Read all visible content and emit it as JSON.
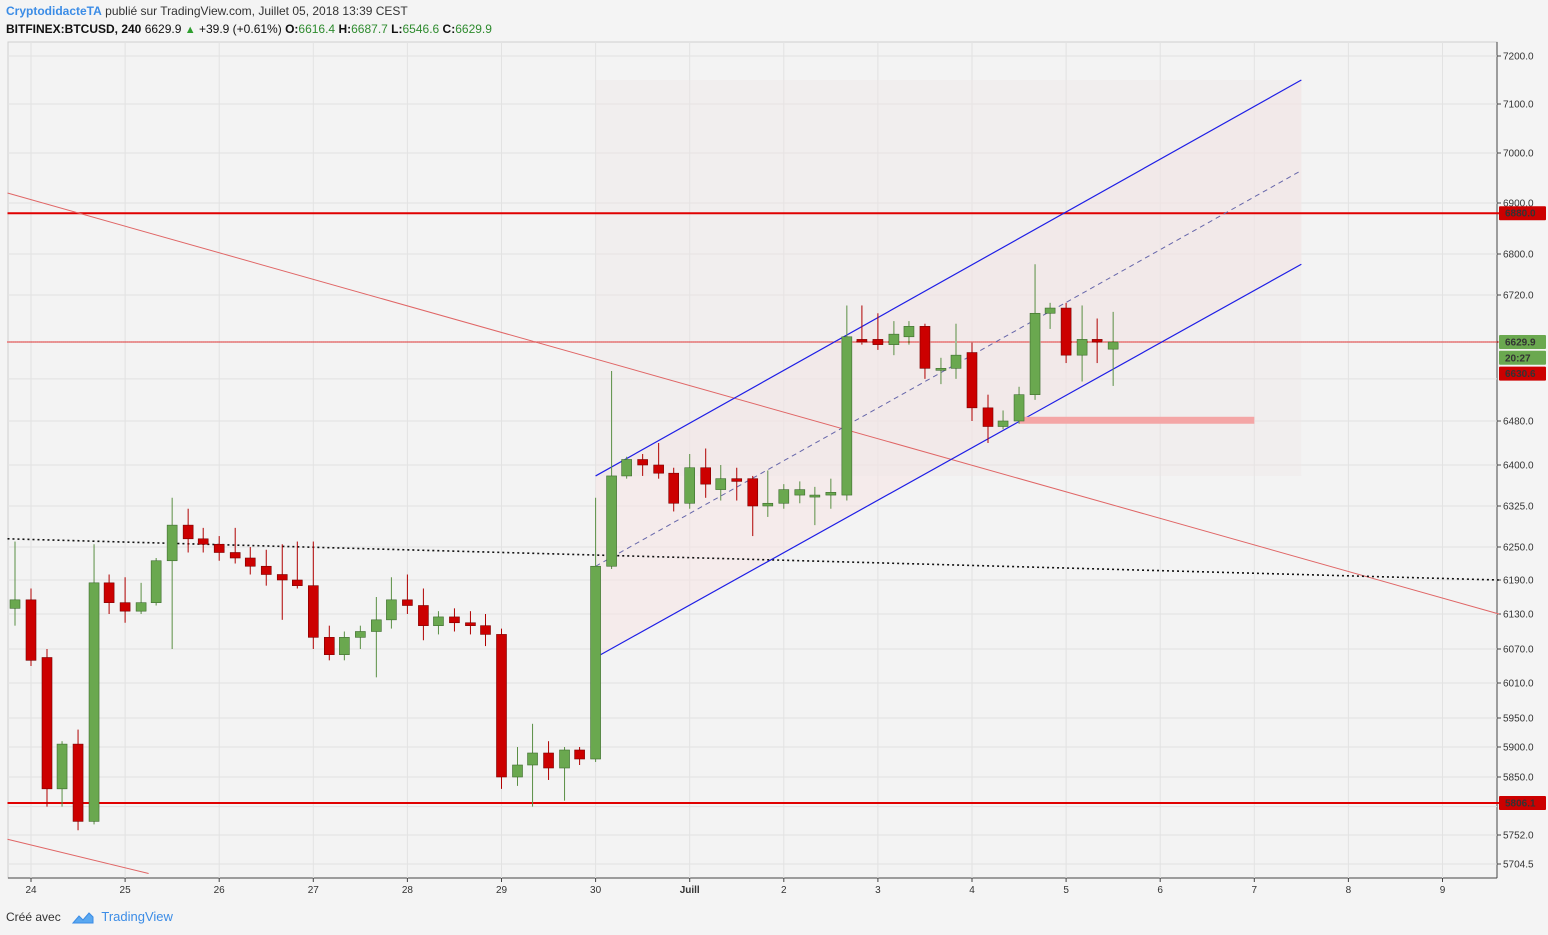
{
  "header": {
    "author": "CryptodidacteTA",
    "published": "publié sur TradingView.com, Juillet 05, 2018 13:39 CEST",
    "symbol": "BITFINEX:BTCUSD, 240",
    "last": "6629.9",
    "change": "+39.9 (+0.61%)",
    "o_label": "O:",
    "o": "6616.4",
    "h_label": "H:",
    "h": "6687.7",
    "l_label": "L:",
    "l": "6546.6",
    "c_label": "C:",
    "c": "6629.9"
  },
  "footer": {
    "created": "Créé avec",
    "brand": "TradingView"
  },
  "colors": {
    "up": "#6aa84f",
    "down": "#cc0000",
    "support": "#e00000",
    "channel": "#1e1ee6",
    "downtrend": "#e06666"
  },
  "chart_data": {
    "type": "candlestick",
    "xlabel": "",
    "ylabel": "",
    "y_ticks": [
      7200.0,
      7100.0,
      7000.0,
      6900.0,
      6800.0,
      6720.0,
      6480.0,
      6400.0,
      6325.0,
      6250.0,
      6190.0,
      6130.0,
      6070.0,
      6010.0,
      5950.0,
      5900.0,
      5850.0,
      5752.0,
      5704.5
    ],
    "x_labels": [
      {
        "label": "24",
        "day": 0
      },
      {
        "label": "25",
        "day": 1
      },
      {
        "label": "26",
        "day": 2
      },
      {
        "label": "27",
        "day": 3
      },
      {
        "label": "28",
        "day": 4
      },
      {
        "label": "29",
        "day": 5
      },
      {
        "label": "30",
        "day": 6
      },
      {
        "label": "Juill",
        "day": 7
      },
      {
        "label": "2",
        "day": 8
      },
      {
        "label": "3",
        "day": 9
      },
      {
        "label": "4",
        "day": 10
      },
      {
        "label": "5",
        "day": 11
      },
      {
        "label": "6",
        "day": 12
      },
      {
        "label": "7",
        "day": 13
      },
      {
        "label": "8",
        "day": 14
      },
      {
        "label": "9",
        "day": 15
      }
    ],
    "price_labels": [
      {
        "value": "6880.0",
        "price": 6880,
        "color": "#cc0000"
      },
      {
        "value": "6629.9",
        "price": 6629.9,
        "color": "#6aa84f"
      },
      {
        "value": "20:27",
        "price": 6600,
        "color": "#6aa84f"
      },
      {
        "value": "6630.6",
        "price": 6570,
        "color": "#cc0000"
      },
      {
        "value": "5806.1",
        "price": 5806.1,
        "color": "#cc0000"
      }
    ],
    "candles": [
      {
        "d": -0.17,
        "o": 6140,
        "h": 6260,
        "l": 6110,
        "c": 6155
      },
      {
        "d": 0.0,
        "o": 6155,
        "h": 6175,
        "l": 6040,
        "c": 6050
      },
      {
        "d": 0.17,
        "o": 6055,
        "h": 6070,
        "l": 5800,
        "c": 5830
      },
      {
        "d": 0.33,
        "o": 5830,
        "h": 5910,
        "l": 5800,
        "c": 5905
      },
      {
        "d": 0.5,
        "o": 5905,
        "h": 5930,
        "l": 5760,
        "c": 5775
      },
      {
        "d": 0.67,
        "o": 5775,
        "h": 6255,
        "l": 5770,
        "c": 6185
      },
      {
        "d": 0.83,
        "o": 6185,
        "h": 6200,
        "l": 6130,
        "c": 6150
      },
      {
        "d": 1.0,
        "o": 6150,
        "h": 6195,
        "l": 6115,
        "c": 6135
      },
      {
        "d": 1.17,
        "o": 6135,
        "h": 6185,
        "l": 6130,
        "c": 6150
      },
      {
        "d": 1.33,
        "o": 6150,
        "h": 6230,
        "l": 6145,
        "c": 6225
      },
      {
        "d": 1.5,
        "o": 6225,
        "h": 6340,
        "l": 6070,
        "c": 6290
      },
      {
        "d": 1.67,
        "o": 6290,
        "h": 6320,
        "l": 6240,
        "c": 6265
      },
      {
        "d": 1.83,
        "o": 6265,
        "h": 6285,
        "l": 6240,
        "c": 6255
      },
      {
        "d": 2.0,
        "o": 6255,
        "h": 6270,
        "l": 6225,
        "c": 6240
      },
      {
        "d": 2.17,
        "o": 6240,
        "h": 6285,
        "l": 6220,
        "c": 6230
      },
      {
        "d": 2.33,
        "o": 6230,
        "h": 6250,
        "l": 6200,
        "c": 6215
      },
      {
        "d": 2.5,
        "o": 6215,
        "h": 6245,
        "l": 6180,
        "c": 6200
      },
      {
        "d": 2.67,
        "o": 6200,
        "h": 6255,
        "l": 6120,
        "c": 6190
      },
      {
        "d": 2.83,
        "o": 6190,
        "h": 6260,
        "l": 6175,
        "c": 6180
      },
      {
        "d": 3.0,
        "o": 6180,
        "h": 6260,
        "l": 6070,
        "c": 6090
      },
      {
        "d": 3.17,
        "o": 6090,
        "h": 6110,
        "l": 6050,
        "c": 6060
      },
      {
        "d": 3.33,
        "o": 6060,
        "h": 6100,
        "l": 6050,
        "c": 6090
      },
      {
        "d": 3.5,
        "o": 6090,
        "h": 6110,
        "l": 6070,
        "c": 6100
      },
      {
        "d": 3.67,
        "o": 6100,
        "h": 6160,
        "l": 6020,
        "c": 6120
      },
      {
        "d": 3.83,
        "o": 6120,
        "h": 6195,
        "l": 6105,
        "c": 6155
      },
      {
        "d": 4.0,
        "o": 6155,
        "h": 6200,
        "l": 6130,
        "c": 6145
      },
      {
        "d": 4.17,
        "o": 6145,
        "h": 6175,
        "l": 6085,
        "c": 6110
      },
      {
        "d": 4.33,
        "o": 6110,
        "h": 6135,
        "l": 6095,
        "c": 6125
      },
      {
        "d": 4.5,
        "o": 6125,
        "h": 6140,
        "l": 6100,
        "c": 6115
      },
      {
        "d": 4.67,
        "o": 6115,
        "h": 6135,
        "l": 6095,
        "c": 6110
      },
      {
        "d": 4.83,
        "o": 6110,
        "h": 6130,
        "l": 6075,
        "c": 6095
      },
      {
        "d": 5.0,
        "o": 6095,
        "h": 6105,
        "l": 5830,
        "c": 5850
      },
      {
        "d": 5.17,
        "o": 5850,
        "h": 5900,
        "l": 5835,
        "c": 5870
      },
      {
        "d": 5.33,
        "o": 5870,
        "h": 5940,
        "l": 5800,
        "c": 5890
      },
      {
        "d": 5.5,
        "o": 5890,
        "h": 5910,
        "l": 5845,
        "c": 5865
      },
      {
        "d": 5.67,
        "o": 5865,
        "h": 5900,
        "l": 5810,
        "c": 5895
      },
      {
        "d": 5.83,
        "o": 5895,
        "h": 5900,
        "l": 5870,
        "c": 5880
      },
      {
        "d": 6.0,
        "o": 5880,
        "h": 6340,
        "l": 5875,
        "c": 6215
      },
      {
        "d": 6.17,
        "o": 6215,
        "h": 6575,
        "l": 6210,
        "c": 6380
      },
      {
        "d": 6.33,
        "o": 6380,
        "h": 6415,
        "l": 6375,
        "c": 6410
      },
      {
        "d": 6.5,
        "o": 6410,
        "h": 6420,
        "l": 6380,
        "c": 6400
      },
      {
        "d": 6.67,
        "o": 6400,
        "h": 6440,
        "l": 6375,
        "c": 6385
      },
      {
        "d": 6.83,
        "o": 6385,
        "h": 6395,
        "l": 6315,
        "c": 6330
      },
      {
        "d": 7.0,
        "o": 6330,
        "h": 6420,
        "l": 6320,
        "c": 6395
      },
      {
        "d": 7.17,
        "o": 6395,
        "h": 6430,
        "l": 6340,
        "c": 6365
      },
      {
        "d": 7.33,
        "o": 6355,
        "h": 6400,
        "l": 6335,
        "c": 6375
      },
      {
        "d": 7.5,
        "o": 6375,
        "h": 6395,
        "l": 6335,
        "c": 6370
      },
      {
        "d": 7.67,
        "o": 6375,
        "h": 6380,
        "l": 6270,
        "c": 6325
      },
      {
        "d": 7.83,
        "o": 6325,
        "h": 6390,
        "l": 6305,
        "c": 6330
      },
      {
        "d": 8.0,
        "o": 6330,
        "h": 6365,
        "l": 6320,
        "c": 6355
      },
      {
        "d": 8.17,
        "o": 6345,
        "h": 6370,
        "l": 6330,
        "c": 6355
      },
      {
        "d": 8.33,
        "o": 6345,
        "h": 6360,
        "l": 6290,
        "c": 6345
      },
      {
        "d": 8.5,
        "o": 6345,
        "h": 6375,
        "l": 6320,
        "c": 6350
      },
      {
        "d": 8.67,
        "o": 6345,
        "h": 6700,
        "l": 6335,
        "c": 6640
      },
      {
        "d": 8.83,
        "o": 6635,
        "h": 6700,
        "l": 6625,
        "c": 6630
      },
      {
        "d": 9.0,
        "o": 6635,
        "h": 6685,
        "l": 6615,
        "c": 6625
      },
      {
        "d": 9.17,
        "o": 6625,
        "h": 6670,
        "l": 6605,
        "c": 6645
      },
      {
        "d": 9.33,
        "o": 6640,
        "h": 6670,
        "l": 6625,
        "c": 6660
      },
      {
        "d": 9.5,
        "o": 6660,
        "h": 6665,
        "l": 6560,
        "c": 6580
      },
      {
        "d": 9.67,
        "o": 6580,
        "h": 6600,
        "l": 6550,
        "c": 6580
      },
      {
        "d": 9.83,
        "o": 6580,
        "h": 6665,
        "l": 6560,
        "c": 6605
      },
      {
        "d": 10.0,
        "o": 6610,
        "h": 6630,
        "l": 6480,
        "c": 6505
      },
      {
        "d": 10.17,
        "o": 6505,
        "h": 6530,
        "l": 6440,
        "c": 6470
      },
      {
        "d": 10.33,
        "o": 6470,
        "h": 6500,
        "l": 6465,
        "c": 6480
      },
      {
        "d": 10.5,
        "o": 6480,
        "h": 6545,
        "l": 6475,
        "c": 6530
      },
      {
        "d": 10.67,
        "o": 6530,
        "h": 6780,
        "l": 6520,
        "c": 6685
      },
      {
        "d": 10.83,
        "o": 6685,
        "h": 6705,
        "l": 6655,
        "c": 6695
      },
      {
        "d": 11.0,
        "o": 6695,
        "h": 6705,
        "l": 6590,
        "c": 6605
      },
      {
        "d": 11.17,
        "o": 6605,
        "h": 6700,
        "l": 6555,
        "c": 6635
      },
      {
        "d": 11.33,
        "o": 6635,
        "h": 6675,
        "l": 6590,
        "c": 6630
      },
      {
        "d": 11.5,
        "o": 6616.4,
        "h": 6687.7,
        "l": 6546.6,
        "c": 6629.9
      }
    ],
    "lines": [
      {
        "name": "resistance-6880",
        "d1": -0.25,
        "p1": 6880,
        "d2": 15.6,
        "p2": 6880,
        "color": "#e00000",
        "width": 2
      },
      {
        "name": "current-6630",
        "d1": -0.25,
        "p1": 6630,
        "d2": 15.6,
        "p2": 6630,
        "color": "#e00000",
        "width": 1.6,
        "dash": "1,1"
      },
      {
        "name": "support-5806",
        "d1": -0.25,
        "p1": 5806.1,
        "d2": 15.6,
        "p2": 5806.1,
        "color": "#e00000",
        "width": 2
      },
      {
        "name": "downtrend-main",
        "d1": -0.25,
        "p1": 6920,
        "d2": 15.6,
        "p2": 6130,
        "color": "#e06666",
        "width": 1
      },
      {
        "name": "downtrend-low",
        "d1": -0.25,
        "p1": 5745,
        "d2": 1.25,
        "p2": 5689,
        "color": "#e06666",
        "width": 1
      },
      {
        "name": "dotted-trend",
        "d1": -0.25,
        "p1": 6265,
        "d2": 15.6,
        "p2": 6190,
        "color": "#111111",
        "width": 1.6,
        "dash": "2,3"
      },
      {
        "name": "channel-upper",
        "d1": 6.0,
        "p1": 6380,
        "d2": 13.5,
        "p2": 7150,
        "color": "#1e1ee6",
        "width": 1.2
      },
      {
        "name": "channel-lower",
        "d1": 6.0,
        "p1": 6055,
        "d2": 13.5,
        "p2": 6780,
        "color": "#1e1ee6",
        "width": 1.2
      },
      {
        "name": "channel-median",
        "d1": 6.0,
        "p1": 6215,
        "d2": 13.5,
        "p2": 6965,
        "color": "#6666aa",
        "width": 1,
        "dash": "5,4"
      }
    ],
    "zone": {
      "d1": 10.5,
      "d2": 13.0,
      "p1": 6475,
      "p2": 6488,
      "color": "#f4a6a6"
    }
  }
}
